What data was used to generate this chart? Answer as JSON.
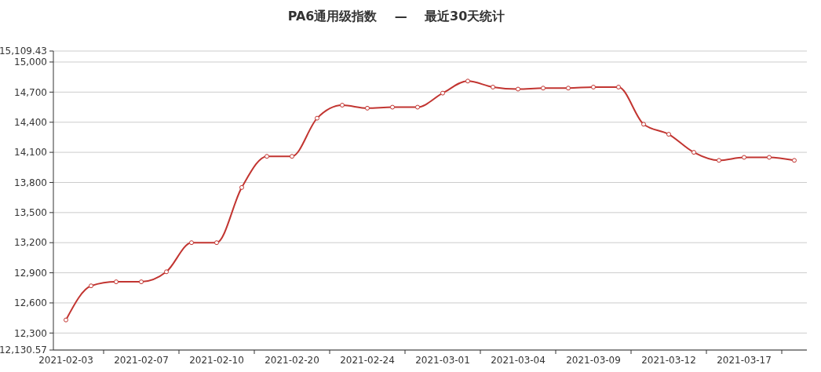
{
  "chart_data": {
    "type": "line",
    "title": "PA6通用级指数    —    最近30天统计",
    "categories": [
      "2021-02-03",
      null,
      null,
      "2021-02-07",
      null,
      null,
      "2021-02-10",
      null,
      null,
      "2021-02-20",
      null,
      null,
      "2021-02-24",
      null,
      null,
      "2021-03-01",
      null,
      null,
      "2021-03-04",
      null,
      null,
      "2021-03-09",
      null,
      null,
      "2021-03-12",
      null,
      null,
      "2021-03-17",
      null,
      null
    ],
    "series": [
      {
        "color": "#c23531",
        "values": [
          12430,
          12770,
          12810,
          12810,
          12910,
          13200,
          13200,
          13750,
          14060,
          14060,
          14440,
          14570,
          14540,
          14550,
          14550,
          14690,
          14810,
          14750,
          14730,
          14740,
          14740,
          14750,
          14750,
          14380,
          14280,
          14100,
          14020,
          14050,
          14050,
          14020
        ]
      }
    ],
    "ylim": [
      12130.57,
      15109.43
    ],
    "yticks": [
      {
        "value": 12130.57,
        "label": "12,130.57"
      },
      {
        "value": 12300,
        "label": "12,300"
      },
      {
        "value": 12600,
        "label": "12,600"
      },
      {
        "value": 12900,
        "label": "12,900"
      },
      {
        "value": 13200,
        "label": "13,200"
      },
      {
        "value": 13500,
        "label": "13,500"
      },
      {
        "value": 13800,
        "label": "13,800"
      },
      {
        "value": 14100,
        "label": "14,100"
      },
      {
        "value": 14400,
        "label": "14,400"
      },
      {
        "value": 14700,
        "label": "14,700"
      },
      {
        "value": 15000,
        "label": "15,000"
      },
      {
        "value": 15109.43,
        "label": "15,109.43"
      }
    ],
    "grid": "y",
    "marker": "circle",
    "line_style": "solid"
  }
}
